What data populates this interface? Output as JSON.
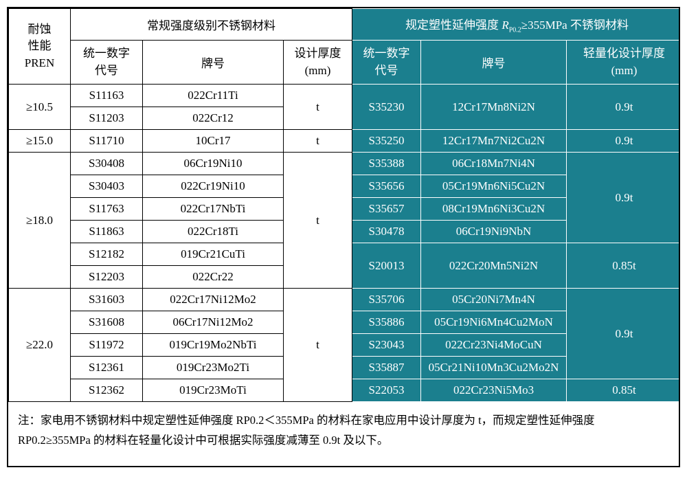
{
  "colors": {
    "teal": "#1b7f8e",
    "grid-dark": "#000000",
    "grid-light": "#ffffff"
  },
  "header": {
    "pren_lines": [
      "耐蚀",
      "性能",
      "PREN"
    ],
    "left_group_title": "常规强度级别不锈钢材料",
    "right_group": {
      "prefix": "规定塑性延伸强度 ",
      "symbol": "R",
      "subscript": "P0.2",
      "suffix": "≥355MPa 不锈钢材料"
    },
    "cols": {
      "left_code": [
        "统一数字",
        "代号"
      ],
      "left_grade": "牌号",
      "left_thickness": [
        "设计厚度",
        "(mm)"
      ],
      "right_code": [
        "统一数字",
        "代号"
      ],
      "right_grade": "牌号",
      "right_thickness": [
        "轻量化设计厚度",
        "(mm)"
      ]
    }
  },
  "groups": [
    {
      "pren": "≥10.5",
      "left_rows": [
        {
          "code": "S11163",
          "grade": "022Cr11Ti"
        },
        {
          "code": "S11203",
          "grade": "022Cr12"
        }
      ],
      "left_thickness": "t",
      "right_rows": [
        {
          "code": "S35230",
          "grade": "12Cr17Mn8Ni2N"
        }
      ],
      "right_thicknesses": [
        "0.9t"
      ]
    },
    {
      "pren": "≥15.0",
      "left_rows": [
        {
          "code": "S11710",
          "grade": "10Cr17"
        }
      ],
      "left_thickness": "t",
      "right_rows": [
        {
          "code": "S35250",
          "grade": "12Cr17Mn7Ni2Cu2N"
        }
      ],
      "right_thicknesses": [
        "0.9t"
      ]
    },
    {
      "pren": "≥18.0",
      "left_rows": [
        {
          "code": "S30408",
          "grade": "06Cr19Ni10"
        },
        {
          "code": "S30403",
          "grade": "022Cr19Ni10"
        },
        {
          "code": "S11763",
          "grade": "022Cr17NbTi"
        },
        {
          "code": "S11863",
          "grade": "022Cr18Ti"
        },
        {
          "code": "S12182",
          "grade": "019Cr21CuTi"
        },
        {
          "code": "S12203",
          "grade": "022Cr22"
        }
      ],
      "left_thickness": "t",
      "right_rows": [
        {
          "code": "S35388",
          "grade": "06Cr18Mn7Ni4N"
        },
        {
          "code": "S35656",
          "grade": "05Cr19Mn6Ni5Cu2N"
        },
        {
          "code": "S35657",
          "grade": "08Cr19Mn6Ni3Cu2N"
        },
        {
          "code": "S30478",
          "grade": "06Cr19Ni9NbN"
        },
        {
          "code": "S20013",
          "grade": "022Cr20Mn5Ni2N"
        }
      ],
      "right_thicknesses": [
        "0.9t",
        "0.85t"
      ]
    },
    {
      "pren": "≥22.0",
      "left_rows": [
        {
          "code": "S31603",
          "grade": "022Cr17Ni12Mo2"
        },
        {
          "code": "S31608",
          "grade": "06Cr17Ni12Mo2"
        },
        {
          "code": "S11972",
          "grade": "019Cr19Mo2NbTi"
        },
        {
          "code": "S12361",
          "grade": "019Cr23Mo2Ti"
        },
        {
          "code": "S12362",
          "grade": "019Cr23MoTi"
        }
      ],
      "left_thickness": "t",
      "right_rows": [
        {
          "code": "S35706",
          "grade": "05Cr20Ni7Mn4N"
        },
        {
          "code": "S35886",
          "grade": "05Cr19Ni6Mn4Cu2MoN"
        },
        {
          "code": "S23043",
          "grade": "022Cr23Ni4MoCuN"
        },
        {
          "code": "S35887",
          "grade": "05Cr21Ni10Mn3Cu2Mo2N"
        },
        {
          "code": "S22053",
          "grade": "022Cr23Ni5Mo3"
        }
      ],
      "right_thicknesses": [
        "0.9t",
        "0.85t"
      ]
    }
  ],
  "note": {
    "text": "注：家电用不锈钢材料中规定塑性延伸强度 RP0.2＜355MPa 的材料在家电应用中设计厚度为 t，而规定塑性延伸强度 RP0.2≥355MPa 的材料在轻量化设计中可根据实际强度减薄至 0.9t 及以下。"
  }
}
